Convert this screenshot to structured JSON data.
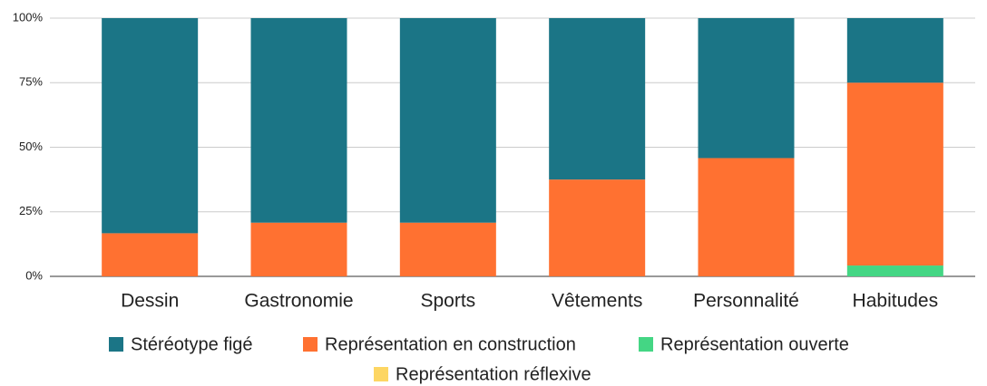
{
  "chart_data": {
    "type": "stacked_bar",
    "categories": [
      "Dessin",
      "Gastronomie",
      "Sports",
      "Vêtements",
      "Personnalité",
      "Habitudes"
    ],
    "series": [
      {
        "name": "Stéréotype figé",
        "color": "#1b7586",
        "values": [
          83.3,
          79.2,
          79.2,
          62.5,
          54.2,
          25
        ]
      },
      {
        "name": "Représentation en construction",
        "color": "#ff7131",
        "values": [
          16.7,
          20.8,
          20.8,
          37.5,
          45.8,
          70.8
        ]
      },
      {
        "name": "Représentation ouverte",
        "color": "#44d684",
        "values": [
          0,
          0,
          0,
          0,
          0,
          4.2
        ]
      },
      {
        "name": "Représentation réflexive",
        "color": "#fdd663",
        "values": [
          0,
          0,
          0,
          0,
          0,
          0
        ]
      }
    ],
    "ylim": [
      0,
      100
    ],
    "yticks": [
      {
        "value": 0,
        "label": "0%"
      },
      {
        "value": 25,
        "label": "25%"
      },
      {
        "value": 50,
        "label": "50%"
      },
      {
        "value": 75,
        "label": "75%"
      },
      {
        "value": 100,
        "label": "100%"
      }
    ],
    "grid": true
  }
}
